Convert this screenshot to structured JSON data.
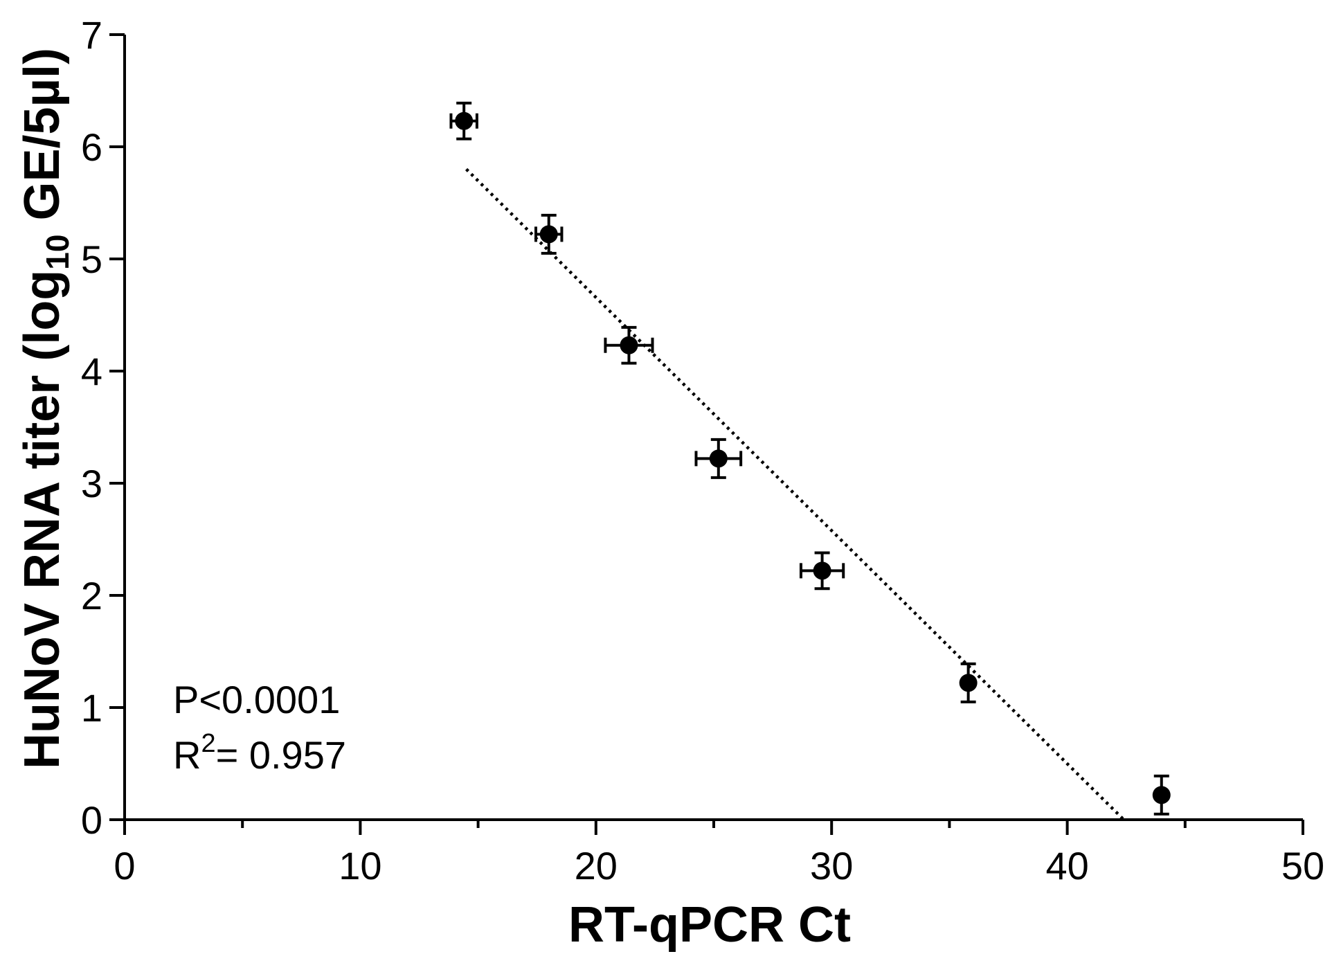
{
  "chart_data": {
    "type": "scatter",
    "xlabel": "RT-qPCR Ct",
    "ylabel": {
      "prefix": "HuNoV RNA titer (log",
      "subscript": "10",
      "suffix": " GE/5µl)"
    },
    "xlim": [
      0,
      50
    ],
    "ylim": [
      0,
      7
    ],
    "x_ticks": [
      0,
      10,
      20,
      30,
      40,
      50
    ],
    "y_ticks": [
      0,
      1,
      2,
      3,
      4,
      5,
      6,
      7
    ],
    "x_minor_step": 5,
    "grid": false,
    "marker_color": "#000000",
    "points": [
      {
        "x": 14.4,
        "y": 6.23,
        "xerr": 0.55,
        "yerr": 0.16
      },
      {
        "x": 18.0,
        "y": 5.22,
        "xerr": 0.55,
        "yerr": 0.17
      },
      {
        "x": 21.4,
        "y": 4.23,
        "xerr": 1.0,
        "yerr": 0.16
      },
      {
        "x": 25.2,
        "y": 3.22,
        "xerr": 0.95,
        "yerr": 0.17
      },
      {
        "x": 29.6,
        "y": 2.22,
        "xerr": 0.9,
        "yerr": 0.16
      },
      {
        "x": 35.8,
        "y": 1.22,
        "xerr": 0.0,
        "yerr": 0.17
      },
      {
        "x": 44.0,
        "y": 0.22,
        "xerr": 0.0,
        "yerr": 0.17
      }
    ],
    "fit_line": {
      "x_start": 14.5,
      "y_start": 5.8,
      "x_end": 42.4,
      "y_end": 0.0
    },
    "annotations": {
      "p_value": "P<0.0001",
      "r2_prefix": "R",
      "r2_superscript": "2",
      "r2_value": "= 0.957"
    }
  }
}
